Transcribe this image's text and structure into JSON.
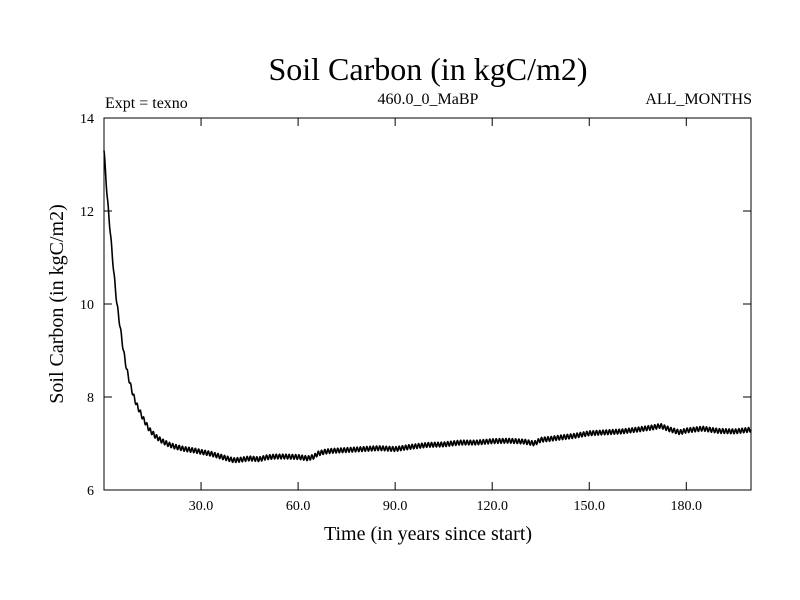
{
  "chart_data": {
    "type": "line",
    "title": "Soil Carbon (in kgC/m2)",
    "subtitle_left": "Expt = texno",
    "subtitle_center": "460.0_0_MaBP",
    "subtitle_right": "ALL_MONTHS",
    "xlabel": "Time (in years since start)",
    "ylabel": "Soil Carbon (in kgC/m2)",
    "xlim": [
      0,
      200
    ],
    "ylim": [
      6,
      14
    ],
    "x_ticks": [
      30,
      60,
      90,
      120,
      150,
      180
    ],
    "x_tick_labels": [
      "30.0",
      "60.0",
      "90.0",
      "120.0",
      "150.0",
      "180.0"
    ],
    "y_ticks": [
      6,
      8,
      10,
      12,
      14
    ],
    "y_tick_labels": [
      "6",
      "8",
      "10",
      "12",
      "14"
    ],
    "grid": false,
    "seasonal_amplitude": 0.05,
    "series": [
      {
        "name": "Soil Carbon",
        "color": "#000000",
        "x": [
          0,
          1,
          2,
          3,
          4,
          5,
          6,
          7,
          8,
          9,
          10,
          12,
          14,
          16,
          18,
          20,
          22,
          25,
          28,
          30,
          33,
          36,
          38,
          40,
          42,
          45,
          48,
          50,
          53,
          56,
          60,
          63,
          65,
          66,
          68,
          70,
          75,
          80,
          85,
          90,
          95,
          100,
          105,
          110,
          115,
          120,
          125,
          130,
          133,
          135,
          138,
          140,
          145,
          150,
          155,
          160,
          165,
          170,
          172,
          175,
          178,
          180,
          185,
          190,
          195,
          200
        ],
        "values": [
          13.3,
          12.3,
          11.5,
          10.7,
          10.0,
          9.5,
          9.0,
          8.6,
          8.3,
          8.05,
          7.85,
          7.55,
          7.3,
          7.15,
          7.05,
          6.98,
          6.93,
          6.88,
          6.85,
          6.82,
          6.78,
          6.72,
          6.68,
          6.64,
          6.65,
          6.68,
          6.66,
          6.7,
          6.72,
          6.72,
          6.71,
          6.68,
          6.72,
          6.78,
          6.82,
          6.84,
          6.86,
          6.88,
          6.9,
          6.88,
          6.93,
          6.97,
          6.98,
          7.02,
          7.02,
          7.05,
          7.06,
          7.04,
          7.0,
          7.08,
          7.1,
          7.12,
          7.16,
          7.22,
          7.24,
          7.26,
          7.3,
          7.35,
          7.38,
          7.3,
          7.24,
          7.28,
          7.32,
          7.27,
          7.26,
          7.3
        ]
      }
    ]
  }
}
